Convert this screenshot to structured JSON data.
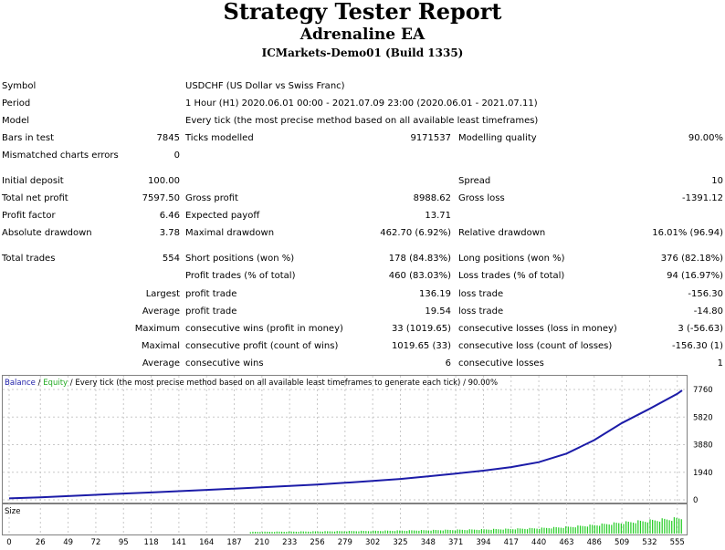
{
  "header": {
    "title": "Strategy Tester Report",
    "ea_name": "Adrenaline EA",
    "server": "ICMarkets-Demo01 (Build 1335)"
  },
  "info": {
    "symbol_label": "Symbol",
    "symbol_value": "USDCHF (US Dollar vs Swiss Franc)",
    "period_label": "Period",
    "period_value": "1 Hour (H1) 2020.06.01 00:00 - 2021.07.09 23:00 (2020.06.01 - 2021.07.11)",
    "model_label": "Model",
    "model_value": "Every tick (the most precise method based on all available least timeframes)",
    "bars_label": "Bars in test",
    "bars_value": "7845",
    "ticks_label": "Ticks modelled",
    "ticks_value": "9171537",
    "quality_label": "Modelling quality",
    "quality_value": "90.00%",
    "mismatch_label": "Mismatched charts errors",
    "mismatch_value": "0"
  },
  "stats": {
    "initial_deposit_label": "Initial deposit",
    "initial_deposit_value": "100.00",
    "spread_label": "Spread",
    "spread_value": "10",
    "net_profit_label": "Total net profit",
    "net_profit_value": "7597.50",
    "gross_profit_label": "Gross profit",
    "gross_profit_value": "8988.62",
    "gross_loss_label": "Gross loss",
    "gross_loss_value": "-1391.12",
    "profit_factor_label": "Profit factor",
    "profit_factor_value": "6.46",
    "expected_payoff_label": "Expected payoff",
    "expected_payoff_value": "13.71",
    "abs_dd_label": "Absolute drawdown",
    "abs_dd_value": "3.78",
    "max_dd_label": "Maximal drawdown",
    "max_dd_value": "462.70 (6.92%)",
    "rel_dd_label": "Relative drawdown",
    "rel_dd_value": "16.01% (96.94)"
  },
  "trades": {
    "total_label": "Total trades",
    "total_value": "554",
    "short_label": "Short positions (won %)",
    "short_value": "178 (84.83%)",
    "long_label": "Long positions (won %)",
    "long_value": "376 (82.18%)",
    "profit_trades_label": "Profit trades (% of total)",
    "profit_trades_value": "460 (83.03%)",
    "loss_trades_label": "Loss trades (% of total)",
    "loss_trades_value": "94 (16.97%)",
    "largest_label": "Largest",
    "largest_profit_label": "profit trade",
    "largest_profit_value": "136.19",
    "largest_loss_label": "loss trade",
    "largest_loss_value": "-156.30",
    "average_label": "Average",
    "average_profit_label": "profit trade",
    "average_profit_value": "19.54",
    "average_loss_label": "loss trade",
    "average_loss_value": "-14.80",
    "maximum_label": "Maximum",
    "max_wins_label": "consecutive wins (profit in money)",
    "max_wins_value": "33 (1019.65)",
    "max_losses_label": "consecutive losses (loss in money)",
    "max_losses_value": "3 (-56.63)",
    "maximal_label": "Maximal",
    "maxl_profit_label": "consecutive profit (count of wins)",
    "maxl_profit_value": "1019.65 (33)",
    "maxl_loss_label": "consecutive loss (count of losses)",
    "maxl_loss_value": "-156.30 (1)",
    "average2_label": "Average",
    "avg_wins_label": "consecutive wins",
    "avg_wins_value": "6",
    "avg_losses_label": "consecutive losses",
    "avg_losses_value": "1"
  },
  "chart_legend": {
    "balance": "Balance",
    "slash1": " / ",
    "equity": "Equity",
    "rest": " / Every tick (the most precise method based on all available least timeframes to generate each tick) / 90.00%",
    "size_label": "Size"
  },
  "colors": {
    "balance": "#1c1ca8",
    "equity": "#22aa22",
    "size_bars": "#22cc22",
    "grid": "#c8c8c8"
  },
  "chart_data": {
    "type": "line",
    "series": [
      {
        "name": "Balance",
        "x": [
          0,
          26,
          49,
          72,
          95,
          118,
          141,
          164,
          187,
          210,
          233,
          256,
          279,
          302,
          325,
          348,
          371,
          394,
          417,
          440,
          463,
          486,
          509,
          532,
          555,
          559
        ],
        "values": [
          100,
          180,
          260,
          350,
          440,
          520,
          610,
          700,
          790,
          880,
          980,
          1080,
          1200,
          1330,
          1470,
          1650,
          1850,
          2050,
          2300,
          2650,
          3250,
          4200,
          5400,
          6400,
          7450,
          7697
        ]
      }
    ],
    "y_ticks": [
      "0",
      "1940",
      "3880",
      "5820",
      "7760"
    ],
    "x_ticks": [
      "0",
      "26",
      "49",
      "72",
      "95",
      "118",
      "141",
      "164",
      "187",
      "210",
      "233",
      "256",
      "279",
      "302",
      "325",
      "348",
      "371",
      "394",
      "417",
      "440",
      "463",
      "486",
      "509",
      "532",
      "555"
    ],
    "ylim": [
      0,
      7760
    ],
    "xlim": [
      0,
      559
    ],
    "size_panel": {
      "label": "Size",
      "type": "bar",
      "note": "trade lot size per trade, growing with balance"
    }
  }
}
